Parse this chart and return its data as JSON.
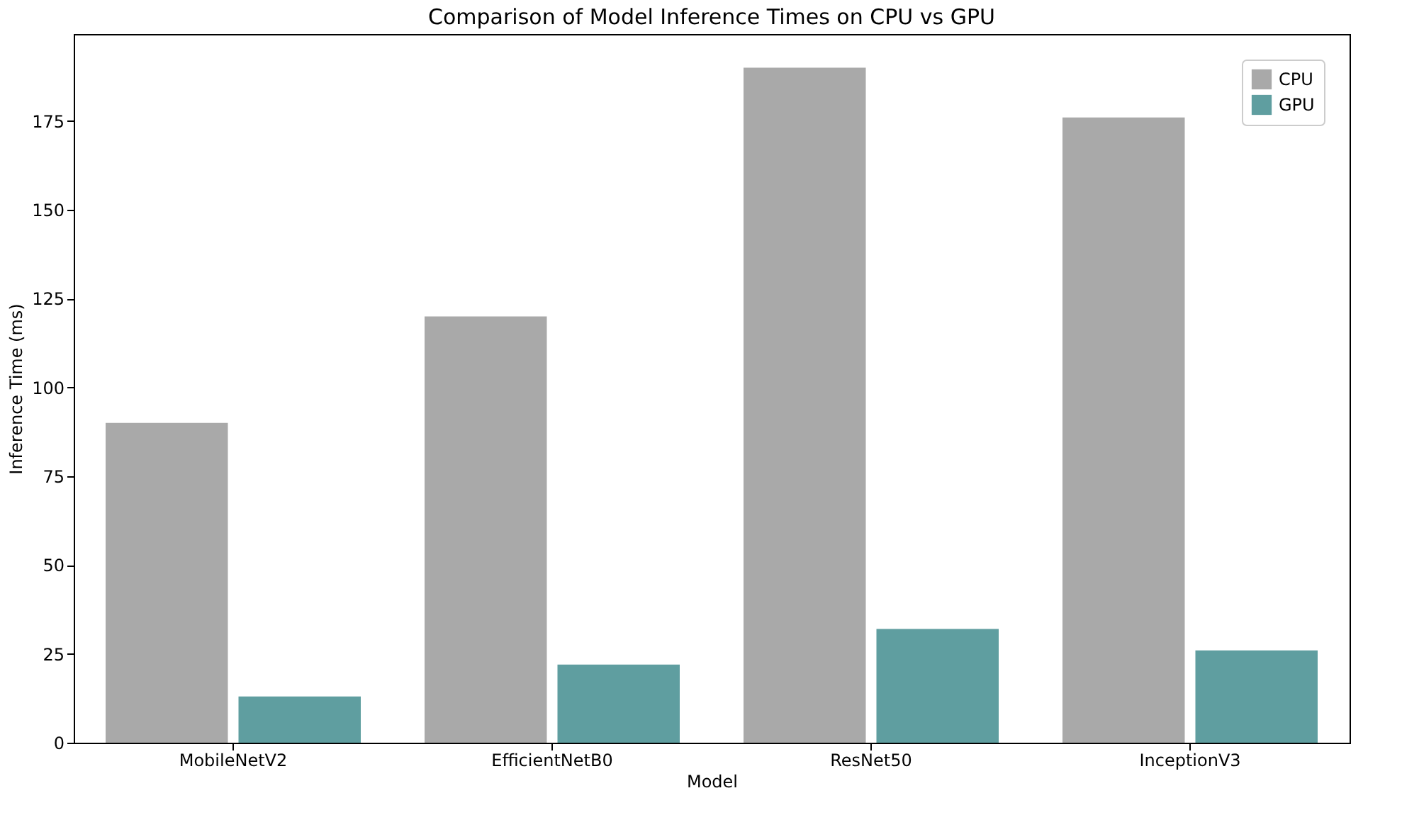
{
  "chart_data": {
    "type": "bar",
    "title": "Comparison of Model Inference Times on CPU vs GPU",
    "xlabel": "Model",
    "ylabel": "Inference Time (ms)",
    "categories": [
      "MobileNetV2",
      "EfficientNetB0",
      "ResNet50",
      "InceptionV3"
    ],
    "series": [
      {
        "name": "CPU",
        "color": "#a9a9a9",
        "values": [
          90,
          120,
          190,
          176
        ]
      },
      {
        "name": "GPU",
        "color": "#5f9ea0",
        "values": [
          13,
          22,
          32,
          26
        ]
      }
    ],
    "ylim": [
      0,
      199.5
    ],
    "yticks": [
      0,
      25,
      50,
      75,
      100,
      125,
      150,
      175
    ],
    "grid": false,
    "legend": "top right"
  }
}
